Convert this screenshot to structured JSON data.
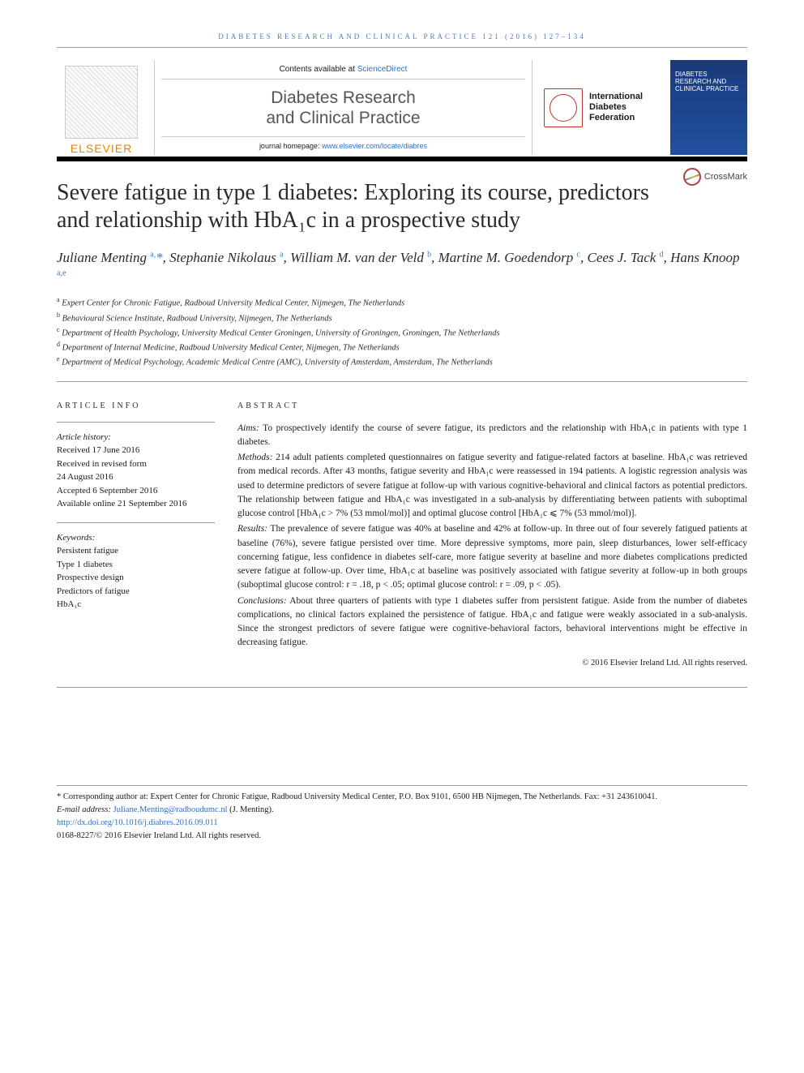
{
  "running_head": "DIABETES RESEARCH AND CLINICAL PRACTICE 121 (2016) 127–134",
  "header": {
    "contents_prefix": "Contents available at ",
    "contents_link": "ScienceDirect",
    "journal_name_line1": "Diabetes Research",
    "journal_name_line2": "and Clinical Practice",
    "homepage_prefix": "journal homepage: ",
    "homepage_url": "www.elsevier.com/locate/diabres",
    "elsevier_label": "ELSEVIER",
    "idf_line1": "International",
    "idf_line2": "Diabetes",
    "idf_line3": "Federation",
    "cover_small": "DIABETES RESEARCH AND CLINICAL PRACTICE",
    "crossmark": "CrossMark"
  },
  "title": "Severe fatigue in type 1 diabetes: Exploring its course, predictors and relationship with HbA₁c in a prospective study",
  "authors_html": "Juliane Menting <sup>a,</sup><span class='star'>*</span>, Stephanie Nikolaus <sup>a</sup>, William M. van der Veld <sup>b</sup>, Martine M. Goedendorp <sup>c</sup>, Cees J. Tack <sup>d</sup>, Hans Knoop <sup>a,e</sup>",
  "affiliations": {
    "a": "Expert Center for Chronic Fatigue, Radboud University Medical Center, Nijmegen, The Netherlands",
    "b": "Behavioural Science Institute, Radboud University, Nijmegen, The Netherlands",
    "c": "Department of Health Psychology, University Medical Center Groningen, University of Groningen, Groningen, The Netherlands",
    "d": "Department of Internal Medicine, Radboud University Medical Center, Nijmegen, The Netherlands",
    "e": "Department of Medical Psychology, Academic Medical Centre (AMC), University of Amsterdam, Amsterdam, The Netherlands"
  },
  "article_info": {
    "heading": "ARTICLE INFO",
    "history_label": "Article history:",
    "received": "Received 17 June 2016",
    "revised1": "Received in revised form",
    "revised2": "24 August 2016",
    "accepted": "Accepted 6 September 2016",
    "online": "Available online 21 September 2016",
    "keywords_label": "Keywords:",
    "keywords": [
      "Persistent fatigue",
      "Type 1 diabetes",
      "Prospective design",
      "Predictors of fatigue",
      "HbA₁c"
    ]
  },
  "abstract": {
    "heading": "ABSTRACT",
    "aims_label": "Aims:",
    "aims": "To prospectively identify the course of severe fatigue, its predictors and the relationship with HbA₁c in patients with type 1 diabetes.",
    "methods_label": "Methods:",
    "methods": "214 adult patients completed questionnaires on fatigue severity and fatigue-related factors at baseline. HbA₁c was retrieved from medical records. After 43 months, fatigue severity and HbA₁c were reassessed in 194 patients. A logistic regression analysis was used to determine predictors of severe fatigue at follow-up with various cognitive-behavioral and clinical factors as potential predictors. The relationship between fatigue and HbA₁c was investigated in a sub-analysis by differentiating between patients with suboptimal glucose control [HbA₁c > 7% (53 mmol/mol)] and optimal glucose control [HbA₁c ⩽ 7% (53 mmol/mol)].",
    "results_label": "Results:",
    "results": "The prevalence of severe fatigue was 40% at baseline and 42% at follow-up. In three out of four severely fatigued patients at baseline (76%), severe fatigue persisted over time. More depressive symptoms, more pain, sleep disturbances, lower self-efficacy concerning fatigue, less confidence in diabetes self-care, more fatigue severity at baseline and more diabetes complications predicted severe fatigue at follow-up. Over time, HbA₁c at baseline was positively associated with fatigue severity at follow-up in both groups (suboptimal glucose control: r = .18, p < .05; optimal glucose control: r = .09, p < .05).",
    "conclusions_label": "Conclusions:",
    "conclusions": "About three quarters of patients with type 1 diabetes suffer from persistent fatigue. Aside from the number of diabetes complications, no clinical factors explained the persistence of fatigue. HbA₁c and fatigue were weakly associated in a sub-analysis. Since the strongest predictors of severe fatigue were cognitive-behavioral factors, behavioral interventions might be effective in decreasing fatigue.",
    "copyright": "© 2016 Elsevier Ireland Ltd. All rights reserved."
  },
  "footer": {
    "corr": "* Corresponding author at: Expert Center for Chronic Fatigue, Radboud University Medical Center, P.O. Box 9101, 6500 HB Nijmegen, The Netherlands. Fax: +31 243610041.",
    "email_label": "E-mail address: ",
    "email": "Juliane.Menting@radboudumc.nl",
    "email_suffix": " (J. Menting).",
    "doi": "http://dx.doi.org/10.1016/j.diabres.2016.09.011",
    "issn": "0168-8227/© 2016 Elsevier Ireland Ltd. All rights reserved."
  }
}
